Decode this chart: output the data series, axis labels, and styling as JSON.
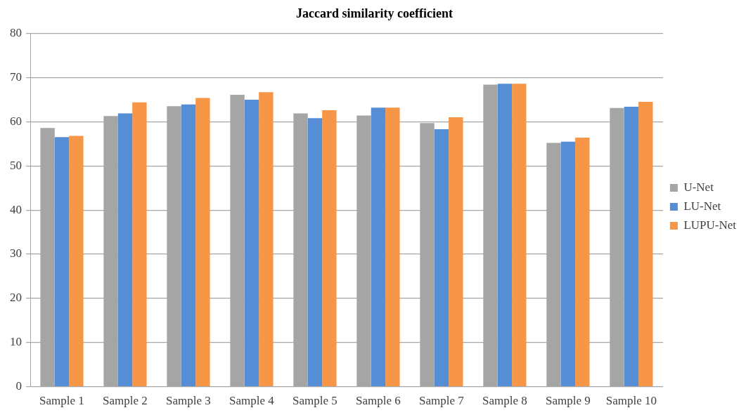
{
  "chart_data": {
    "type": "bar",
    "title": "Jaccard similarity coefficient",
    "categories": [
      "Sample 1",
      "Sample 2",
      "Sample 3",
      "Sample 4",
      "Sample 5",
      "Sample 6",
      "Sample 7",
      "Sample 8",
      "Sample 9",
      "Sample 10"
    ],
    "series": [
      {
        "name": "U-Net",
        "color": "#a5a5a5",
        "values": [
          58.6,
          61.3,
          63.5,
          66.1,
          61.9,
          61.4,
          59.7,
          68.4,
          55.2,
          63.1
        ]
      },
      {
        "name": "LU-Net",
        "color": "#558ed5",
        "values": [
          56.5,
          61.9,
          63.9,
          65.0,
          60.8,
          63.2,
          58.3,
          68.6,
          55.5,
          63.4
        ]
      },
      {
        "name": "LUPU-Net",
        "color": "#f79646",
        "values": [
          56.8,
          64.4,
          65.4,
          66.7,
          62.6,
          63.2,
          61.0,
          68.6,
          56.4,
          64.5
        ]
      }
    ],
    "ylim": [
      0,
      80
    ],
    "yticks": [
      0,
      10,
      20,
      30,
      40,
      50,
      60,
      70,
      80
    ],
    "grid": "y",
    "legend": "right"
  }
}
